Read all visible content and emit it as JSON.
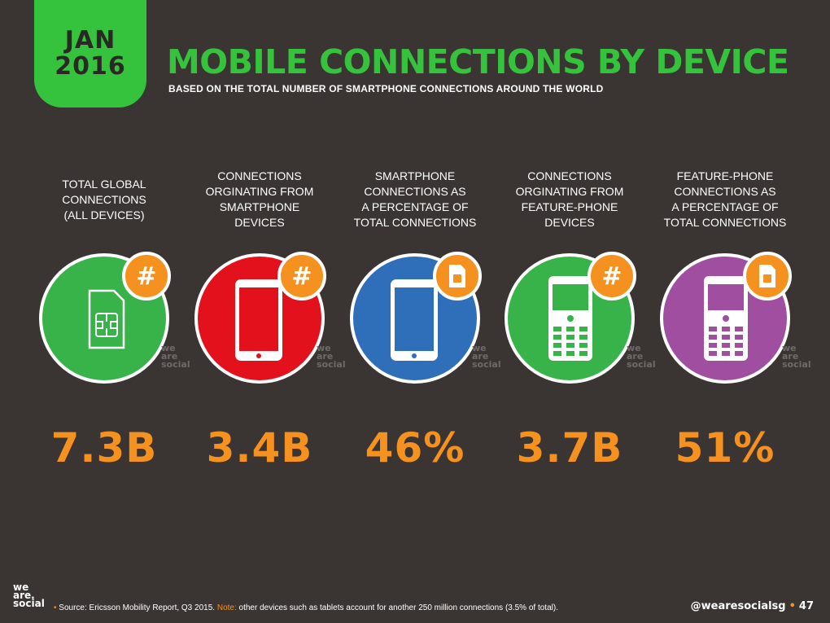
{
  "badge": {
    "month": "JAN",
    "year": "2016"
  },
  "title": "MOBILE CONNECTIONS BY DEVICE",
  "subtitle": "BASED ON THE TOTAL NUMBER OF SMARTPHONE CONNECTIONS AROUND THE WORLD",
  "columns": [
    {
      "label": [
        "TOTAL GLOBAL",
        "CONNECTIONS",
        "(ALL DEVICES)"
      ],
      "value": "7.3B",
      "color": "#37b34a",
      "badge": "#",
      "icon": "sim-card-icon"
    },
    {
      "label": [
        "CONNECTIONS",
        "ORGINATING FROM",
        "SMARTPHONE",
        "DEVICES"
      ],
      "value": "3.4B",
      "color": "#e3111c",
      "badge": "#",
      "icon": "smartphone-icon"
    },
    {
      "label": [
        "SMARTPHONE",
        "CONNECTIONS AS",
        "A PERCENTAGE OF",
        "TOTAL CONNECTIONS"
      ],
      "value": "46%",
      "color": "#2f6fba",
      "badge": "",
      "icon": "smartphone-icon"
    },
    {
      "label": [
        "CONNECTIONS",
        "ORGINATING FROM",
        "FEATURE-PHONE",
        "DEVICES"
      ],
      "value": "3.7B",
      "color": "#37b34a",
      "badge": "#",
      "icon": "feature-phone-icon"
    },
    {
      "label": [
        "FEATURE-PHONE",
        "CONNECTIONS AS",
        "A PERCENTAGE OF",
        "TOTAL CONNECTIONS"
      ],
      "value": "51%",
      "color": "#a04fa0",
      "badge": "",
      "icon": "feature-phone-icon"
    }
  ],
  "watermark": [
    "we",
    "are",
    "social"
  ],
  "footer": {
    "logo": [
      "we",
      "are.",
      "social"
    ],
    "bullet": "•",
    "source": "Source: Ericsson Mobility Report, Q3 2015.",
    "note_label": "Note:",
    "note": "other devices such as tablets account for another 250 million connections (3.5% of total).",
    "handle": "@wearesocialsg",
    "page": "47"
  },
  "colors": {
    "green": "#35c33d",
    "orange": "#f5911e",
    "background": "#3a3532"
  }
}
